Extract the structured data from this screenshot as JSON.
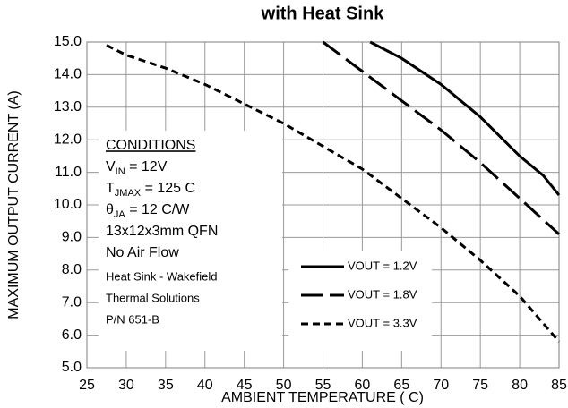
{
  "chart_data": {
    "type": "line",
    "title": "with Heat Sink",
    "x_label": "AMBIENT TEMPERATURE ( C)",
    "y_label": "MAXIMUM OUTPUT  CURRENT (A)",
    "xlim": [
      25,
      85
    ],
    "xticks": [
      25,
      30,
      35,
      40,
      45,
      50,
      55,
      60,
      65,
      70,
      75,
      80,
      85
    ],
    "ylim": [
      5,
      15
    ],
    "yticks": [
      {
        "value": 5,
        "label": "5.0"
      },
      {
        "value": 6,
        "label": "6.0"
      },
      {
        "value": 7,
        "label": "7.0"
      },
      {
        "value": 8,
        "label": "8.0"
      },
      {
        "value": 9,
        "label": "9.0"
      },
      {
        "value": 10,
        "label": "10.0"
      },
      {
        "value": 11,
        "label": "11.0"
      },
      {
        "value": 12,
        "label": "12.0"
      },
      {
        "value": 13,
        "label": "13.0"
      },
      {
        "value": 14,
        "label": "14.0"
      },
      {
        "value": 15,
        "label": "15.0"
      }
    ],
    "grid": true,
    "series": [
      {
        "name": "VOUT = 1.2V",
        "color": "#000000",
        "dash": "solid",
        "x": [
          61,
          65,
          70,
          75,
          80,
          83,
          85
        ],
        "values": [
          15,
          14.5,
          13.7,
          12.7,
          11.5,
          10.9,
          10.3
        ]
      },
      {
        "name": "VOUT = 1.8V",
        "color": "#000000",
        "dash": "long",
        "x": [
          55,
          60,
          65,
          70,
          75,
          80,
          85
        ],
        "values": [
          15,
          14.1,
          13.2,
          12.3,
          11.3,
          10.2,
          9.1
        ]
      },
      {
        "name": "VOUT = 3.3V",
        "color": "#000000",
        "dash": "short",
        "x": [
          27.5,
          30,
          35,
          40,
          45,
          50,
          55,
          60,
          65,
          70,
          75,
          80,
          85
        ],
        "values": [
          14.9,
          14.6,
          14.2,
          13.7,
          13.1,
          12.5,
          11.8,
          11.1,
          10.2,
          9.3,
          8.3,
          7.2,
          5.8
        ]
      }
    ],
    "conditions": {
      "heading": "CONDITIONS",
      "vin": {
        "main": "V",
        "sub": "IN",
        "rest": " = 12V"
      },
      "tj": {
        "main": "T",
        "sub": "JMAX",
        "rest": " = 125  C"
      },
      "theta": {
        "main": "θ",
        "sub": "JA",
        "rest": " = 12  C/W"
      },
      "package": "13x12x3mm QFN",
      "airflow": "No Air Flow",
      "heatsink": [
        "Heat Sink - Wakefield",
        "Thermal Solutions",
        "P/N 651-B"
      ]
    }
  }
}
